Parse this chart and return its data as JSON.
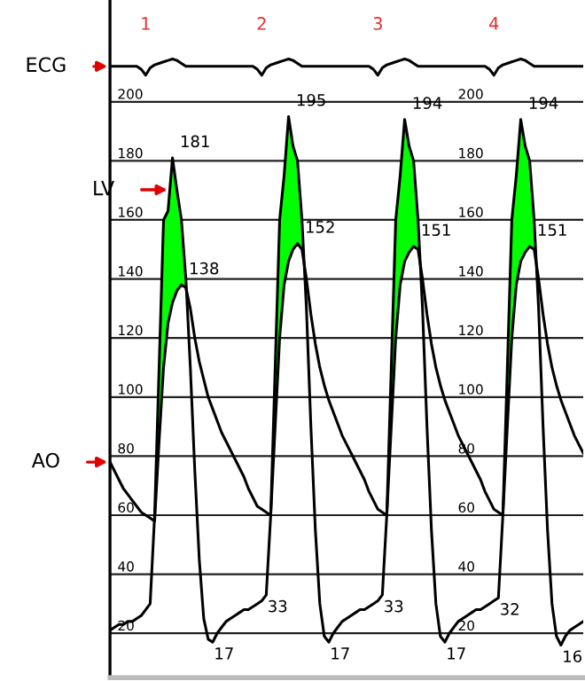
{
  "chart_data": {
    "type": "line",
    "categories": [
      null,
      null,
      null,
      null,
      null,
      null,
      null,
      null,
      null,
      null,
      null,
      null,
      null,
      null,
      null,
      null,
      null,
      null,
      null,
      null,
      null,
      null,
      null,
      null,
      null,
      null,
      null,
      null,
      null,
      null,
      null,
      null,
      null,
      null,
      null,
      null,
      null,
      null,
      null,
      null,
      null,
      null,
      null,
      null,
      null,
      null,
      null,
      null,
      null,
      null,
      null,
      null,
      null,
      null,
      null,
      null,
      null,
      null,
      null,
      null,
      null,
      null,
      null,
      null,
      null,
      null,
      null,
      null,
      null,
      null,
      null,
      null,
      null,
      null,
      null,
      null,
      null,
      null,
      null,
      null,
      null,
      null,
      null,
      null,
      null,
      null,
      null,
      null,
      null,
      null,
      null,
      null,
      null,
      null,
      null,
      null,
      null,
      null,
      null,
      null,
      null,
      null,
      null,
      null,
      null,
      null,
      null
    ],
    "series": [
      {
        "name": "ECG",
        "color": "#000000",
        "values": [
          212,
          212,
          212,
          212,
          212,
          212,
          212,
          211,
          209,
          211.5,
          212.5,
          213,
          213.5,
          214,
          214.5,
          214,
          213,
          212,
          212,
          212,
          212,
          212,
          212,
          212,
          212,
          212,
          212,
          212,
          212,
          212,
          212,
          212,
          212,
          211,
          209,
          211.5,
          212.5,
          213,
          213.5,
          214,
          214.5,
          214,
          213,
          212,
          212,
          212,
          212,
          212,
          212,
          212,
          212,
          212,
          212,
          212,
          212,
          212,
          212,
          212,
          212,
          211,
          209,
          211.5,
          212.5,
          213,
          213.5,
          214,
          214.5,
          214,
          213,
          212,
          212,
          212,
          212,
          212,
          212,
          212,
          212,
          212,
          212,
          212,
          212,
          212,
          212,
          212,
          212,
          211,
          209,
          211.5,
          212.5,
          213,
          213.5,
          214,
          214.5,
          214,
          213,
          212,
          212,
          212,
          212,
          212,
          212,
          212,
          212,
          212,
          212,
          212,
          212
        ]
      },
      {
        "name": "LV",
        "color": "#000000",
        "values": [
          21,
          22,
          23,
          23,
          24,
          24,
          25,
          26,
          28,
          30,
          60,
          110,
          160,
          163,
          181,
          170,
          160,
          140,
          110,
          75,
          45,
          25,
          18,
          17,
          20,
          22,
          24,
          25,
          26,
          27,
          28,
          28,
          29,
          30,
          31,
          33,
          60,
          110,
          160,
          175,
          195,
          185,
          180,
          160,
          130,
          90,
          55,
          30,
          19,
          17,
          20,
          22,
          24,
          25,
          26,
          27,
          28,
          28,
          29,
          30,
          31,
          33,
          60,
          110,
          160,
          175,
          194,
          185,
          180,
          160,
          130,
          90,
          55,
          30,
          19,
          17,
          20,
          22,
          24,
          25,
          26,
          27,
          28,
          28,
          29,
          30,
          31,
          32,
          60,
          110,
          160,
          175,
          194,
          185,
          180,
          160,
          130,
          90,
          55,
          30,
          19,
          16,
          19,
          21,
          22,
          23,
          24
        ],
        "value_labels": [
          null,
          null,
          null,
          null,
          null,
          null,
          null,
          null,
          null,
          null,
          null,
          null,
          null,
          null,
          "181",
          null,
          null,
          null,
          null,
          null,
          null,
          null,
          null,
          "17",
          null,
          null,
          null,
          null,
          null,
          null,
          null,
          null,
          null,
          null,
          null,
          "33",
          null,
          null,
          null,
          null,
          "195",
          null,
          null,
          null,
          null,
          null,
          null,
          null,
          null,
          "17",
          null,
          null,
          null,
          null,
          null,
          null,
          null,
          null,
          null,
          null,
          null,
          "33",
          null,
          null,
          null,
          null,
          "194",
          null,
          null,
          null,
          null,
          null,
          null,
          null,
          null,
          "17",
          null,
          null,
          null,
          null,
          null,
          null,
          null,
          null,
          null,
          null,
          null,
          "32",
          null,
          null,
          null,
          null,
          "194",
          null,
          null,
          null,
          null,
          null,
          null,
          null,
          null,
          "16",
          null,
          null,
          null,
          null,
          null
        ]
      },
      {
        "name": "AO",
        "color": "#000000",
        "values": [
          78,
          75,
          72,
          69,
          67,
          65,
          63,
          61,
          60,
          59,
          58,
          85,
          110,
          125,
          132,
          136,
          138,
          137,
          130,
          120,
          112,
          106,
          100,
          96,
          92,
          88,
          85,
          82,
          79,
          76,
          73,
          69,
          66,
          63,
          62,
          61,
          60,
          90,
          120,
          138,
          146,
          150,
          152,
          150,
          140,
          128,
          118,
          110,
          104,
          99,
          95,
          91,
          87,
          84,
          81,
          78,
          75,
          72,
          68,
          65,
          62,
          61,
          60,
          90,
          120,
          138,
          146,
          149,
          151,
          150,
          140,
          128,
          118,
          110,
          104,
          99,
          95,
          91,
          87,
          84,
          81,
          78,
          75,
          72,
          68,
          65,
          62,
          61,
          60,
          90,
          120,
          138,
          146,
          149,
          151,
          150,
          140,
          128,
          118,
          110,
          104,
          99,
          95,
          91,
          87,
          84,
          81
        ],
        "value_labels": [
          null,
          null,
          null,
          null,
          null,
          null,
          null,
          null,
          null,
          null,
          null,
          null,
          null,
          null,
          null,
          null,
          "138",
          null,
          null,
          null,
          null,
          null,
          null,
          null,
          null,
          null,
          null,
          null,
          null,
          null,
          null,
          null,
          null,
          null,
          null,
          null,
          null,
          null,
          null,
          null,
          null,
          null,
          "152",
          null,
          null,
          null,
          null,
          null,
          null,
          null,
          null,
          null,
          null,
          null,
          null,
          null,
          null,
          null,
          null,
          null,
          null,
          null,
          null,
          null,
          null,
          null,
          null,
          null,
          "151",
          null,
          null,
          null,
          null,
          null,
          null,
          null,
          null,
          null,
          null,
          null,
          null,
          null,
          null,
          null,
          null,
          null,
          null,
          null,
          null,
          null,
          null,
          null,
          null,
          null,
          "151",
          null,
          null,
          null,
          null,
          null,
          null,
          null,
          null,
          null,
          null,
          null,
          null
        ]
      }
    ],
    "annotations": [
      "1",
      "2",
      "3",
      "4"
    ],
    "ylim": [
      5,
      234
    ],
    "yticks": [
      20,
      40,
      60,
      80,
      100,
      120,
      140,
      160,
      180,
      200
    ],
    "y2lim": [
      5,
      234
    ],
    "y2ticks": [
      20,
      40,
      60,
      80,
      100,
      120,
      140,
      160,
      180,
      200
    ],
    "grid": "y",
    "legend": false,
    "tick_labels": "y",
    "marker": "none",
    "line_style": "solid"
  }
}
